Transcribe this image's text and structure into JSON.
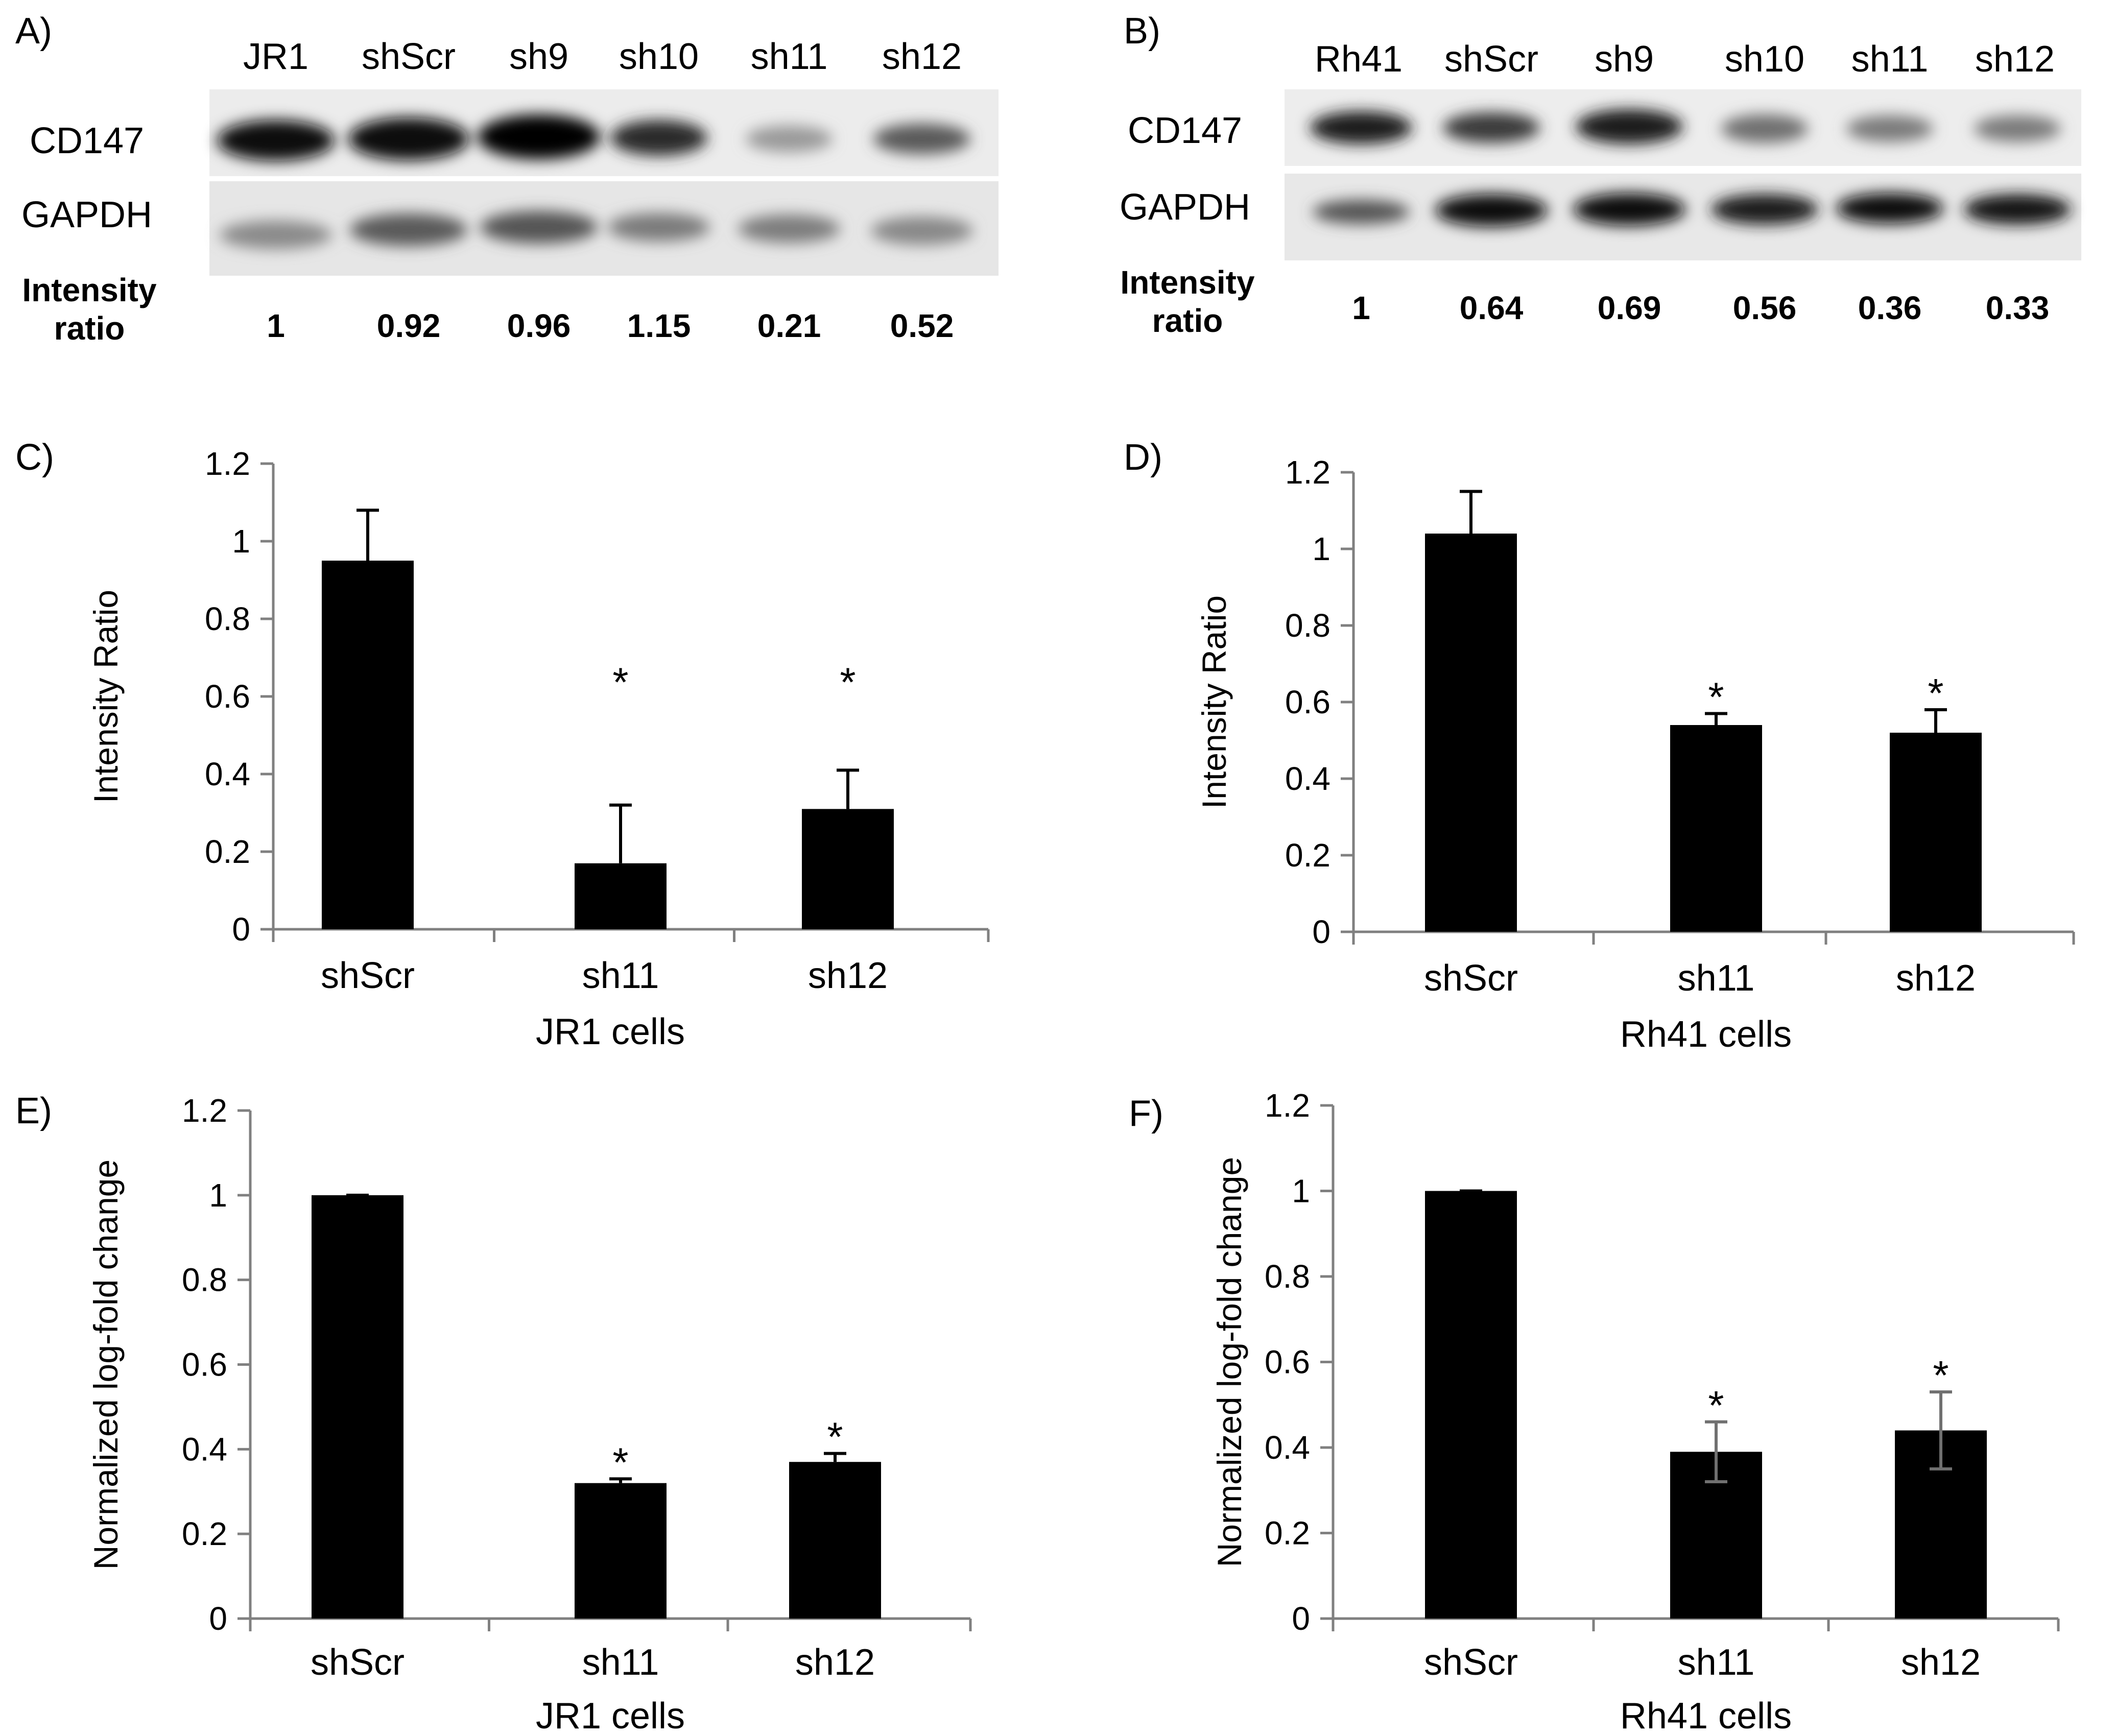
{
  "colors": {
    "bar": "#000000",
    "axis": "#808080",
    "blot_bg": "#ececec",
    "error_bar_grey": "#707070"
  },
  "blots": [
    {
      "panel": "A)",
      "lanes": [
        "JR1",
        "shScr",
        "sh9",
        "sh10",
        "sh11",
        "sh12"
      ],
      "rows": [
        "CD147",
        "GAPDH"
      ],
      "ratio_label_1": "Intensity",
      "ratio_label_2": "ratio",
      "ratios": [
        "1",
        "0.92",
        "0.96",
        "1.15",
        "0.21",
        "0.52"
      ]
    },
    {
      "panel": "B)",
      "lanes": [
        "Rh41",
        "shScr",
        "sh9",
        "sh10",
        "sh11",
        "sh12"
      ],
      "rows": [
        "CD147",
        "GAPDH"
      ],
      "ratio_label_1": "Intensity",
      "ratio_label_2": "ratio",
      "ratios": [
        "1",
        "0.64",
        "0.69",
        "0.56",
        "0.36",
        "0.33"
      ]
    }
  ],
  "chart_data": [
    {
      "panel": "C)",
      "type": "bar",
      "categories": [
        "shScr",
        "sh11",
        "sh12"
      ],
      "values": [
        0.95,
        0.17,
        0.31
      ],
      "errors": [
        0.13,
        0.15,
        0.1
      ],
      "significant": [
        false,
        true,
        true
      ],
      "significance_marker": "*",
      "ylabel": "Intensity Ratio",
      "xlabel": "JR1 cells",
      "ylim": [
        0,
        1.2
      ],
      "yticks": [
        "0",
        "0.2",
        "0.4",
        "0.6",
        "0.8",
        "1",
        "1.2"
      ]
    },
    {
      "panel": "D)",
      "type": "bar",
      "categories": [
        "shScr",
        "sh11",
        "sh12"
      ],
      "values": [
        1.04,
        0.54,
        0.52
      ],
      "errors": [
        0.11,
        0.03,
        0.06
      ],
      "significant": [
        false,
        true,
        true
      ],
      "significance_marker": "*",
      "ylabel": "Intensity Ratio",
      "xlabel": "Rh41 cells",
      "ylim": [
        0,
        1.2
      ],
      "yticks": [
        "0",
        "0.2",
        "0.4",
        "0.6",
        "0.8",
        "1",
        "1.2"
      ]
    },
    {
      "panel": "E)",
      "type": "bar",
      "categories": [
        "shScr",
        "sh11",
        "sh12"
      ],
      "values": [
        1.0,
        0.32,
        0.37
      ],
      "errors": [
        0.0,
        0.01,
        0.02
      ],
      "significant": [
        false,
        true,
        true
      ],
      "significance_marker": "*",
      "ylabel": "Normalized log-fold change",
      "xlabel": "JR1 cells",
      "ylim": [
        0,
        1.2
      ],
      "yticks": [
        "0",
        "0.2",
        "0.4",
        "0.6",
        "0.8",
        "1",
        "1.2"
      ]
    },
    {
      "panel": "F)",
      "type": "bar",
      "categories": [
        "shScr",
        "sh11",
        "sh12"
      ],
      "values": [
        1.0,
        0.39,
        0.44
      ],
      "errors": [
        0.0,
        0.07,
        0.09
      ],
      "significant": [
        false,
        true,
        true
      ],
      "significance_marker": "*",
      "ylabel": "Normalized log-fold change",
      "xlabel": "Rh41 cells",
      "ylim": [
        0,
        1.2
      ],
      "yticks": [
        "0",
        "0.2",
        "0.4",
        "0.6",
        "0.8",
        "1",
        "1.2"
      ]
    }
  ]
}
